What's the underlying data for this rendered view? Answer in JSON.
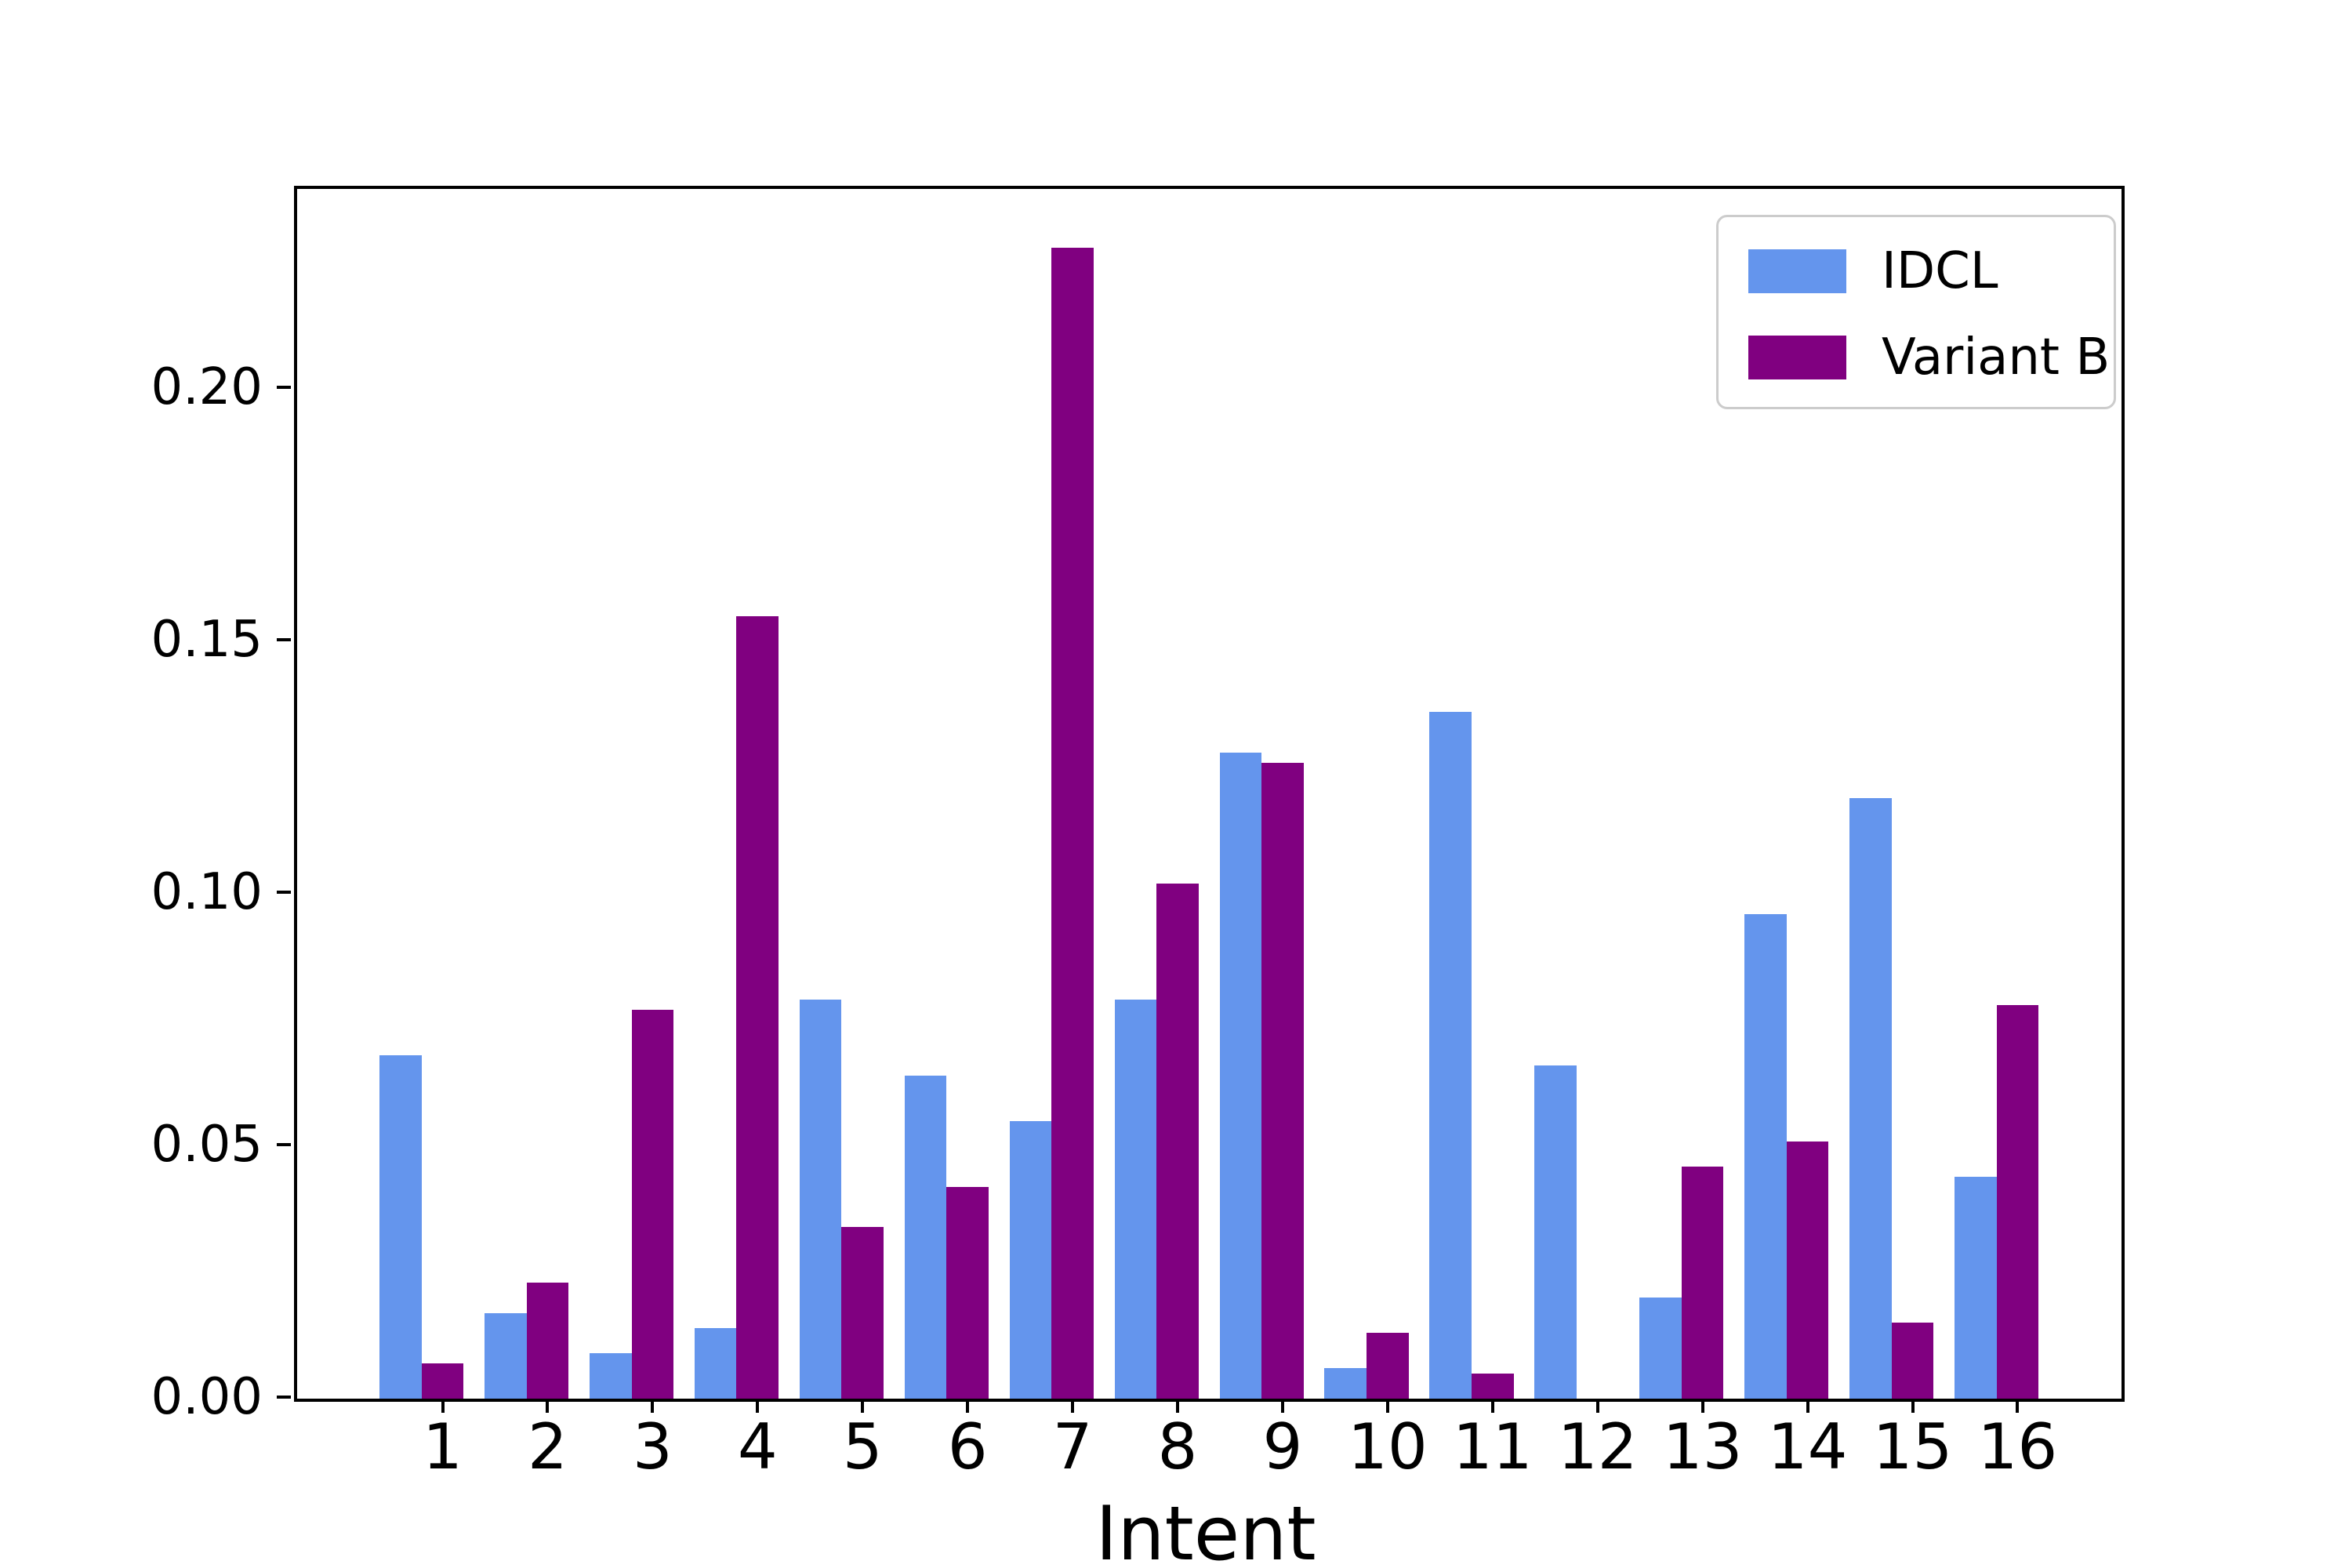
{
  "chart_data": {
    "type": "bar",
    "title": "",
    "xlabel": "Intent",
    "ylabel": "",
    "categories": [
      "1",
      "2",
      "3",
      "4",
      "5",
      "6",
      "7",
      "8",
      "9",
      "10",
      "11",
      "12",
      "13",
      "14",
      "15",
      "16"
    ],
    "series": [
      {
        "name": "IDCL",
        "color": "#6495ED",
        "values": [
          0.068,
          0.017,
          0.009,
          0.014,
          0.079,
          0.064,
          0.055,
          0.079,
          0.128,
          0.006,
          0.136,
          0.066,
          0.02,
          0.096,
          0.119,
          0.044
        ]
      },
      {
        "name": "Variant B",
        "color": "#800080",
        "values": [
          0.007,
          0.023,
          0.077,
          0.155,
          0.034,
          0.042,
          0.228,
          0.102,
          0.126,
          0.013,
          0.005,
          0.0,
          0.046,
          0.051,
          0.015,
          0.078
        ]
      }
    ],
    "ylim": [
      0,
      0.2396
    ],
    "ytick_values": [
      0.0,
      0.05,
      0.1,
      0.15,
      0.2
    ],
    "ytick_labels": [
      "0.00",
      "0.05",
      "0.10",
      "0.15",
      "0.20"
    ],
    "grid": "off",
    "legend_position": "upper right"
  }
}
